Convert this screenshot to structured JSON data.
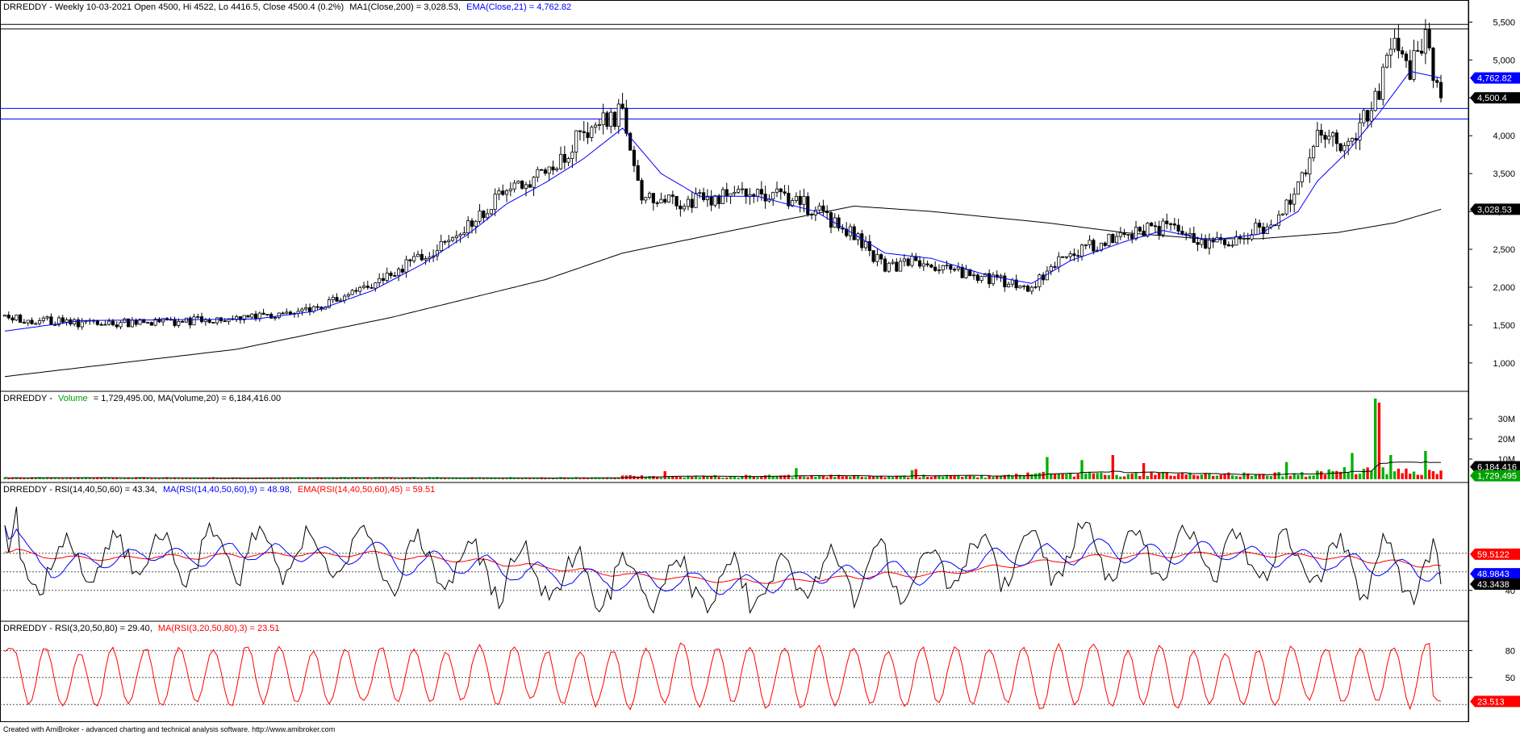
{
  "chart_data": [
    {
      "type": "candlestick",
      "title": "DRREDDY - Weekly 10-03-2021 Open 4500, Hi 4522, Lo 4416.5, Close 4500.4 (0.2%)",
      "legend": [
        {
          "text": "MA1(Close,200) = 3,028.53,",
          "color": "#000000"
        },
        {
          "text": "EMA(Close,21) = 4,762.82",
          "color": "#0000ff"
        }
      ],
      "ylim": [
        700,
        5600
      ],
      "ticks": [
        "5,500",
        "5,000",
        "4,500",
        "4,000",
        "3,500",
        "3,000",
        "2,500",
        "2,000",
        "1,500",
        "1,000"
      ],
      "tick_values": [
        5500,
        5000,
        4500,
        4000,
        3500,
        3000,
        2500,
        2000,
        1500,
        1000
      ],
      "close_anchors": [
        [
          0,
          1600
        ],
        [
          20,
          1520
        ],
        [
          45,
          1540
        ],
        [
          65,
          1620
        ],
        [
          80,
          1700
        ],
        [
          95,
          2050
        ],
        [
          108,
          2400
        ],
        [
          120,
          2800
        ],
        [
          130,
          3300
        ],
        [
          140,
          3500
        ],
        [
          150,
          4050
        ],
        [
          160,
          4300
        ],
        [
          165,
          3200
        ],
        [
          175,
          3100
        ],
        [
          185,
          3200
        ],
        [
          195,
          3250
        ],
        [
          205,
          3150
        ],
        [
          215,
          2850
        ],
        [
          220,
          2700
        ],
        [
          228,
          2250
        ],
        [
          236,
          2350
        ],
        [
          246,
          2200
        ],
        [
          256,
          2100
        ],
        [
          266,
          2000
        ],
        [
          275,
          2450
        ],
        [
          288,
          2650
        ],
        [
          300,
          2800
        ],
        [
          310,
          2580
        ],
        [
          320,
          2650
        ],
        [
          330,
          2900
        ],
        [
          335,
          3300
        ],
        [
          340,
          4000
        ],
        [
          348,
          3850
        ],
        [
          355,
          4500
        ],
        [
          360,
          5200
        ],
        [
          364,
          4900
        ],
        [
          368,
          5300
        ],
        [
          372,
          4500
        ]
      ],
      "ma200_anchors": [
        [
          0,
          820
        ],
        [
          60,
          1180
        ],
        [
          100,
          1600
        ],
        [
          140,
          2100
        ],
        [
          160,
          2450
        ],
        [
          200,
          2870
        ],
        [
          220,
          3070
        ],
        [
          240,
          3000
        ],
        [
          270,
          2850
        ],
        [
          290,
          2720
        ],
        [
          310,
          2640
        ],
        [
          325,
          2640
        ],
        [
          345,
          2720
        ],
        [
          360,
          2850
        ],
        [
          372,
          3028.53
        ]
      ],
      "ema21_anchors": [
        [
          0,
          1420
        ],
        [
          20,
          1560
        ],
        [
          45,
          1570
        ],
        [
          65,
          1580
        ],
        [
          80,
          1680
        ],
        [
          95,
          1950
        ],
        [
          108,
          2300
        ],
        [
          120,
          2700
        ],
        [
          130,
          3100
        ],
        [
          140,
          3380
        ],
        [
          150,
          3700
        ],
        [
          160,
          4100
        ],
        [
          170,
          3500
        ],
        [
          180,
          3200
        ],
        [
          195,
          3200
        ],
        [
          210,
          3000
        ],
        [
          220,
          2700
        ],
        [
          228,
          2450
        ],
        [
          240,
          2380
        ],
        [
          255,
          2150
        ],
        [
          266,
          2050
        ],
        [
          276,
          2350
        ],
        [
          290,
          2600
        ],
        [
          300,
          2750
        ],
        [
          312,
          2620
        ],
        [
          325,
          2700
        ],
        [
          335,
          3000
        ],
        [
          340,
          3400
        ],
        [
          348,
          3800
        ],
        [
          356,
          4300
        ],
        [
          364,
          4850
        ],
        [
          372,
          4762.82
        ]
      ],
      "horizontal_lines": [
        5470,
        5410,
        4360,
        4220
      ],
      "tags": [
        {
          "text": "4,762.82",
          "value": 4762.82,
          "color": "#0000ff"
        },
        {
          "text": "4,500.4",
          "value": 4500.4,
          "color": "#000000"
        },
        {
          "text": "3,028.53",
          "value": 3028.53,
          "color": "#000000"
        }
      ]
    },
    {
      "type": "bar",
      "title": "DRREDDY -",
      "legend": [
        {
          "text": "Volume",
          "color": "#00a000"
        },
        {
          "text": "= 1,729,495.00, MA(Volume,20) = 6,184,416.00",
          "color": "#000000"
        }
      ],
      "ylim": [
        0,
        40000000
      ],
      "ticks": [
        "30M",
        "20M",
        "10M"
      ],
      "tick_values": [
        30000000,
        20000000,
        10000000
      ],
      "spikes": [
        [
          171,
          4000000
        ],
        [
          205,
          5500000
        ],
        [
          235,
          4500000
        ],
        [
          236,
          5000000
        ],
        [
          270,
          11000000
        ],
        [
          279,
          9500000
        ],
        [
          287,
          12000000
        ],
        [
          295,
          8000000
        ],
        [
          332,
          8500000
        ],
        [
          349,
          13000000
        ],
        [
          355,
          40000000
        ],
        [
          356,
          38000000
        ],
        [
          359,
          12000000
        ],
        [
          368,
          14000000
        ]
      ],
      "tags": [
        {
          "text": "6,184,416",
          "value": 6184416,
          "color": "#000000"
        },
        {
          "text": "1,729,495",
          "value": 1729495,
          "color": "#00a000"
        }
      ]
    },
    {
      "type": "line",
      "title": "DRREDDY - RSI(14,40,50,60) = 43.34,",
      "legend": [
        {
          "text": "MA(RSI(14,40,50,60),9) = 48.98,",
          "color": "#0000ff"
        },
        {
          "text": "EMA(RSI(14,40,50,60),45) = 59.51",
          "color": "#ff0000"
        }
      ],
      "ylim": [
        26,
        92
      ],
      "ticks": [
        "40"
      ],
      "tick_values": [
        40
      ],
      "guide_lines": [
        40,
        50,
        60
      ],
      "tags": [
        {
          "text": "59.5122",
          "value": 59.5122,
          "color": "#ff0000"
        },
        {
          "text": "48.9843",
          "value": 48.9843,
          "color": "#0000ff"
        },
        {
          "text": "43.3438",
          "value": 43.3438,
          "color": "#000000"
        }
      ]
    },
    {
      "type": "line",
      "title": "DRREDDY - RSI(3,20,50,80) = 29.40,",
      "legend": [
        {
          "text": "MA(RSI(3,20,50,80),3) = 23.51",
          "color": "#ff0000"
        }
      ],
      "ylim": [
        5,
        100
      ],
      "ticks": [
        "80",
        "50"
      ],
      "tick_values": [
        80,
        50
      ],
      "guide_lines": [
        20,
        50,
        80
      ],
      "tags": [
        {
          "text": "23.513",
          "value": 23.513,
          "color": "#ff0000"
        }
      ]
    }
  ],
  "footer": "Created with AmiBroker - advanced charting and technical analysis software. http://www.amibroker.com"
}
